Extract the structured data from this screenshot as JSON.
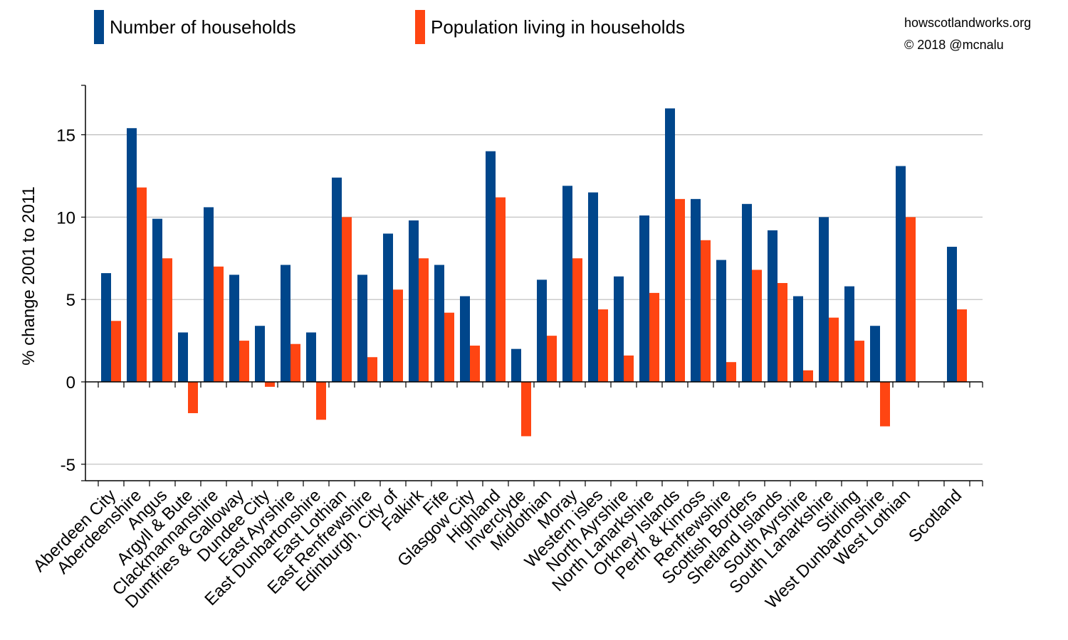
{
  "legend": {
    "series1_label": "Number of households",
    "series2_label": "Population living in households"
  },
  "credits": {
    "site": "howscotlandworks.org",
    "copyright": "© 2018  @mcnalu"
  },
  "colors": {
    "households": "#00468b",
    "population": "#ff4512",
    "grid": "#bbbbbb",
    "axis": "#000000"
  },
  "chart_data": {
    "type": "bar",
    "title": "",
    "xlabel": "",
    "ylabel": "% change 2001 to 2011",
    "ylim": [
      -6,
      18
    ],
    "yticks": [
      -5,
      0,
      5,
      10,
      15
    ],
    "grid": true,
    "legend_position": "top",
    "categories": [
      "Aberdeen City",
      "Aberdeenshire",
      "Angus",
      "Argyll & Bute",
      "Clackmannanshire",
      "Dumfries & Galloway",
      "Dundee City",
      "East Ayrshire",
      "East Dunbartonshire",
      "East Lothian",
      "East Renfrewshire",
      "Edinburgh, City of",
      "Falkirk",
      "Fife",
      "Glasgow City",
      "Highland",
      "Inverclyde",
      "Midlothian",
      "Moray",
      "Western isles",
      "North Ayrshire",
      "North Lanarkshire",
      "Orkney Islands",
      "Perth & Kinross",
      "Renfrewshire",
      "Scottish Borders",
      "Shetland Islands",
      "South Ayrshire",
      "South Lanarkshire",
      "Stirling",
      "West Dunbartonshire",
      "West Lothian",
      "",
      "Scotland"
    ],
    "series": [
      {
        "name": "Number of households",
        "values": [
          6.6,
          15.4,
          9.9,
          3.0,
          10.6,
          6.5,
          3.4,
          7.1,
          3.0,
          12.4,
          6.5,
          9.0,
          9.8,
          7.1,
          5.2,
          14.0,
          2.0,
          6.2,
          11.9,
          11.5,
          6.4,
          10.1,
          16.6,
          11.1,
          7.4,
          10.8,
          9.2,
          5.2,
          10.0,
          5.8,
          3.4,
          13.1,
          null,
          8.2
        ]
      },
      {
        "name": "Population living in households",
        "values": [
          3.7,
          11.8,
          7.5,
          -1.9,
          7.0,
          2.5,
          -0.3,
          2.3,
          -2.3,
          10.0,
          1.5,
          5.6,
          7.5,
          4.2,
          2.2,
          11.2,
          -3.3,
          2.8,
          7.5,
          4.4,
          1.6,
          5.4,
          11.1,
          8.6,
          1.2,
          6.8,
          6.0,
          0.7,
          3.9,
          2.5,
          -2.7,
          10.0,
          null,
          4.4
        ]
      }
    ]
  }
}
